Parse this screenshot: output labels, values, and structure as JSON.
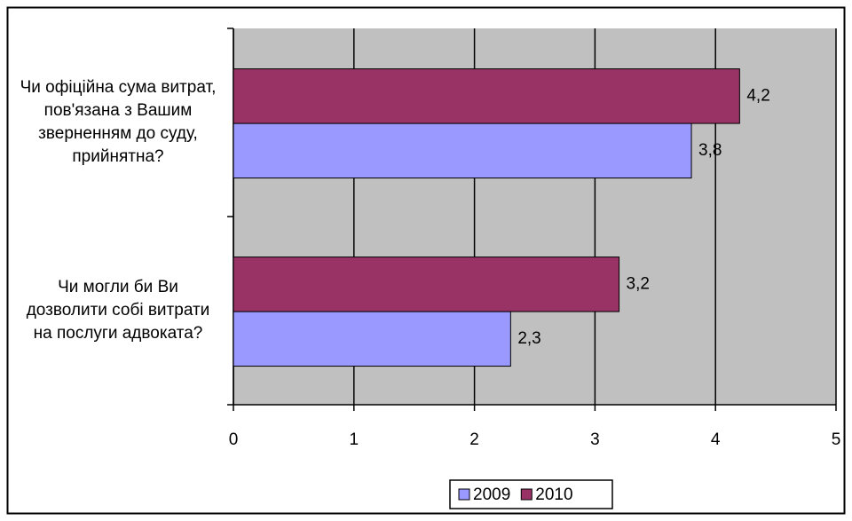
{
  "chart_data": {
    "type": "hbar",
    "categories": [
      "Чи офіційна сума витрат, пов'язана з Вашим зверненням до суду, прийнятна?",
      "Чи могли би Ви дозволити собі витрати на послуги адвоката?"
    ],
    "series": [
      {
        "name": "2009",
        "color": "#9999ff",
        "values": [
          3.8,
          2.3
        ],
        "value_labels": [
          "3,8",
          "2,3"
        ]
      },
      {
        "name": "2010",
        "color": "#993366",
        "values": [
          4.2,
          3.2
        ],
        "value_labels": [
          "4,2",
          "3,2"
        ]
      }
    ],
    "xlim": [
      0,
      5
    ],
    "xticks": [
      0,
      1,
      2,
      3,
      4,
      5
    ],
    "grid": true,
    "legend": "bottom",
    "plot_background": "#c0c0c0"
  }
}
